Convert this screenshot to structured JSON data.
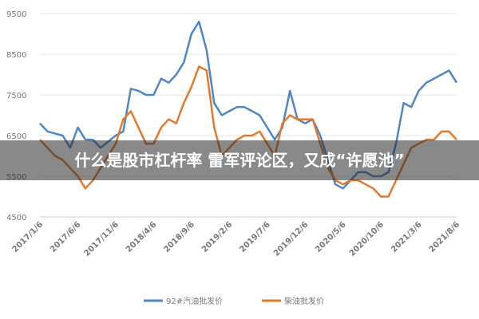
{
  "chart_data": {
    "type": "line",
    "categories": [
      "2017/1/6",
      null,
      null,
      null,
      null,
      "2017/6/6",
      null,
      null,
      null,
      null,
      "2017/11/6",
      null,
      null,
      null,
      null,
      "2018/4/6",
      null,
      null,
      null,
      null,
      "2018/9/6",
      null,
      null,
      null,
      null,
      "2019/2/6",
      null,
      null,
      null,
      null,
      "2019/7/6",
      null,
      null,
      null,
      null,
      "2019/12/6",
      null,
      null,
      null,
      null,
      "2020/5/6",
      null,
      null,
      null,
      null,
      "2020/10/6",
      null,
      null,
      null,
      null,
      "2021/3/6",
      null,
      null,
      null,
      null,
      "2021/8/6"
    ],
    "series": [
      {
        "name": "92#汽油批发价",
        "color": "#4f86c6",
        "values": [
          6800,
          6600,
          6550,
          6500,
          6200,
          6700,
          6400,
          6400,
          6200,
          6350,
          6500,
          6600,
          7650,
          7600,
          7500,
          7500,
          7900,
          7800,
          8000,
          8300,
          9000,
          9300,
          8600,
          7300,
          7000,
          7100,
          7200,
          7200,
          7100,
          7000,
          6700,
          6400,
          6700,
          7600,
          6900,
          6800,
          6900,
          6500,
          5900,
          5300,
          5200,
          5400,
          5600,
          5600,
          5500,
          5500,
          5600,
          6300,
          7300,
          7200,
          7600,
          7800,
          7900,
          8000,
          8100,
          7800
        ]
      },
      {
        "name": "柴油批发价",
        "color": "#e07b2e",
        "values": [
          6400,
          6200,
          6000,
          5900,
          5700,
          5500,
          5200,
          5400,
          5700,
          6000,
          6300,
          6900,
          7100,
          6700,
          6300,
          6300,
          6700,
          6900,
          6800,
          7300,
          7700,
          8200,
          8100,
          6700,
          6000,
          6200,
          6400,
          6500,
          6500,
          6600,
          6300,
          6000,
          6800,
          7000,
          6900,
          6900,
          6900,
          6300,
          5700,
          5400,
          5300,
          5400,
          5400,
          5300,
          5200,
          5000,
          5000,
          5400,
          5800,
          6200,
          6300,
          6400,
          6400,
          6600,
          6600,
          6400
        ]
      }
    ],
    "ylim": [
      4500,
      9500
    ],
    "yticks": [
      4500,
      5500,
      6500,
      7500,
      8500,
      9500
    ],
    "grid": true
  },
  "overlay": {
    "text": "什么是股市杠杆率 雷军评论区，又成“许愿池”"
  }
}
